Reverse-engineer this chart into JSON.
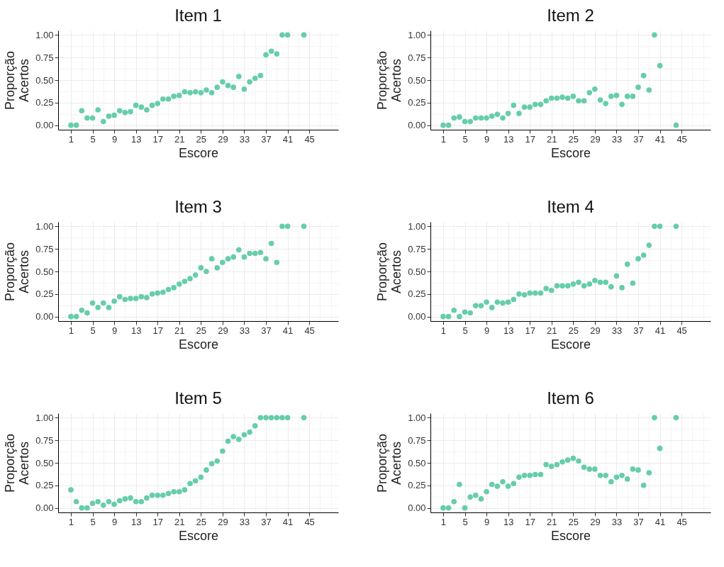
{
  "chart_data": [
    {
      "type": "scatter",
      "title": "Item 1",
      "xlabel": "Escore",
      "ylabel": "Proporção\nAcertos",
      "color": "#66cdaa",
      "marker": "circle",
      "grid": true,
      "x": [
        1,
        2,
        3,
        4,
        5,
        6,
        7,
        8,
        9,
        10,
        11,
        12,
        13,
        14,
        15,
        16,
        17,
        18,
        19,
        20,
        21,
        22,
        23,
        24,
        25,
        26,
        27,
        28,
        29,
        30,
        31,
        32,
        33,
        34,
        35,
        36,
        37,
        38,
        39,
        40,
        41,
        44
      ],
      "values": [
        0,
        0,
        0.16,
        0.08,
        0.08,
        0.17,
        0.04,
        0.1,
        0.11,
        0.16,
        0.14,
        0.15,
        0.22,
        0.2,
        0.17,
        0.22,
        0.24,
        0.29,
        0.29,
        0.32,
        0.33,
        0.37,
        0.36,
        0.37,
        0.36,
        0.39,
        0.36,
        0.42,
        0.48,
        0.44,
        0.42,
        0.54,
        0.4,
        0.48,
        0.52,
        0.55,
        0.78,
        0.82,
        0.79,
        1,
        1,
        1
      ],
      "xlim": [
        -1.35,
        50.35
      ],
      "xticks": [
        1,
        5,
        9,
        13,
        17,
        21,
        25,
        29,
        33,
        37,
        41,
        45
      ],
      "ylim": [
        -0.05,
        1.05
      ],
      "yticks": [
        {
          "value": 0,
          "label": "0.00"
        },
        {
          "value": 0.25,
          "label": "0.25"
        },
        {
          "value": 0.5,
          "label": "0.50"
        },
        {
          "value": 0.75,
          "label": "0.75"
        },
        {
          "value": 1,
          "label": "1.00"
        }
      ]
    },
    {
      "type": "scatter",
      "title": "Item 2",
      "xlabel": "Escore",
      "ylabel": "Proporção\nAcertos",
      "color": "#66cdaa",
      "marker": "circle",
      "grid": true,
      "x": [
        1,
        2,
        3,
        4,
        5,
        6,
        7,
        8,
        9,
        10,
        11,
        12,
        13,
        14,
        15,
        16,
        17,
        18,
        19,
        20,
        21,
        22,
        23,
        24,
        25,
        26,
        27,
        28,
        29,
        30,
        31,
        32,
        33,
        34,
        35,
        36,
        37,
        38,
        39,
        40,
        41,
        44
      ],
      "values": [
        0,
        0,
        0.08,
        0.09,
        0.04,
        0.04,
        0.08,
        0.08,
        0.08,
        0.1,
        0.12,
        0.08,
        0.13,
        0.22,
        0.13,
        0.2,
        0.2,
        0.23,
        0.23,
        0.27,
        0.3,
        0.3,
        0.31,
        0.3,
        0.32,
        0.27,
        0.27,
        0.36,
        0.4,
        0.28,
        0.24,
        0.32,
        0.33,
        0.23,
        0.32,
        0.32,
        0.42,
        0.55,
        0.39,
        1,
        0.66,
        0
      ],
      "xlim": [
        -1.35,
        50.35
      ],
      "xticks": [
        1,
        5,
        9,
        13,
        17,
        21,
        25,
        29,
        33,
        37,
        41,
        45
      ],
      "ylim": [
        -0.05,
        1.05
      ],
      "yticks": [
        {
          "value": 0,
          "label": "0.00"
        },
        {
          "value": 0.25,
          "label": "0.25"
        },
        {
          "value": 0.5,
          "label": "0.50"
        },
        {
          "value": 0.75,
          "label": "0.75"
        },
        {
          "value": 1,
          "label": "1.00"
        }
      ]
    },
    {
      "type": "scatter",
      "title": "Item 3",
      "xlabel": "Escore",
      "ylabel": "Proporção\nAcertos",
      "color": "#66cdaa",
      "marker": "circle",
      "grid": true,
      "x": [
        1,
        2,
        3,
        4,
        5,
        6,
        7,
        8,
        9,
        10,
        11,
        12,
        13,
        14,
        15,
        16,
        17,
        18,
        19,
        20,
        21,
        22,
        23,
        24,
        25,
        26,
        27,
        28,
        29,
        30,
        31,
        32,
        33,
        34,
        35,
        36,
        37,
        38,
        39,
        40,
        41,
        44
      ],
      "values": [
        0,
        0,
        0.07,
        0.04,
        0.15,
        0.1,
        0.15,
        0.1,
        0.17,
        0.22,
        0.19,
        0.2,
        0.2,
        0.22,
        0.21,
        0.25,
        0.26,
        0.27,
        0.3,
        0.32,
        0.36,
        0.39,
        0.42,
        0.46,
        0.54,
        0.5,
        0.64,
        0.54,
        0.6,
        0.64,
        0.66,
        0.74,
        0.66,
        0.7,
        0.7,
        0.71,
        0.64,
        0.81,
        0.6,
        1,
        1,
        1
      ],
      "xlim": [
        -1.35,
        50.35
      ],
      "xticks": [
        1,
        5,
        9,
        13,
        17,
        21,
        25,
        29,
        33,
        37,
        41,
        45
      ],
      "ylim": [
        -0.05,
        1.05
      ],
      "yticks": [
        {
          "value": 0,
          "label": "0.00"
        },
        {
          "value": 0.25,
          "label": "0.25"
        },
        {
          "value": 0.5,
          "label": "0.50"
        },
        {
          "value": 0.75,
          "label": "0.75"
        },
        {
          "value": 1,
          "label": "1.00"
        }
      ]
    },
    {
      "type": "scatter",
      "title": "Item 4",
      "xlabel": "Escore",
      "ylabel": "Proporção\nAcertos",
      "color": "#66cdaa",
      "marker": "circle",
      "grid": true,
      "x": [
        1,
        2,
        3,
        4,
        5,
        6,
        7,
        8,
        9,
        10,
        11,
        12,
        13,
        14,
        15,
        16,
        17,
        18,
        19,
        20,
        21,
        22,
        23,
        24,
        25,
        26,
        27,
        28,
        29,
        30,
        31,
        32,
        33,
        34,
        35,
        36,
        37,
        38,
        39,
        40,
        41,
        44
      ],
      "values": [
        0,
        0,
        0.07,
        0,
        0.05,
        0.04,
        0.12,
        0.12,
        0.16,
        0.1,
        0.16,
        0.15,
        0.16,
        0.19,
        0.25,
        0.24,
        0.26,
        0.26,
        0.26,
        0.31,
        0.29,
        0.34,
        0.34,
        0.34,
        0.36,
        0.38,
        0.34,
        0.36,
        0.4,
        0.38,
        0.38,
        0.33,
        0.45,
        0.32,
        0.58,
        0.37,
        0.64,
        0.68,
        0.79,
        1,
        1,
        1
      ],
      "xlim": [
        -1.35,
        50.35
      ],
      "xticks": [
        1,
        5,
        9,
        13,
        17,
        21,
        25,
        29,
        33,
        37,
        41,
        45
      ],
      "ylim": [
        -0.05,
        1.05
      ],
      "yticks": [
        {
          "value": 0,
          "label": "0.00"
        },
        {
          "value": 0.25,
          "label": "0.25"
        },
        {
          "value": 0.5,
          "label": "0.50"
        },
        {
          "value": 0.75,
          "label": "0.75"
        },
        {
          "value": 1,
          "label": "1.00"
        }
      ]
    },
    {
      "type": "scatter",
      "title": "Item 5",
      "xlabel": "Escore",
      "ylabel": "Proporção\nAcertos",
      "color": "#66cdaa",
      "marker": "circle",
      "grid": true,
      "x": [
        1,
        2,
        3,
        4,
        5,
        6,
        7,
        8,
        9,
        10,
        11,
        12,
        13,
        14,
        15,
        16,
        17,
        18,
        19,
        20,
        21,
        22,
        23,
        24,
        25,
        26,
        27,
        28,
        29,
        30,
        31,
        32,
        33,
        34,
        35,
        36,
        37,
        38,
        39,
        40,
        41,
        44
      ],
      "values": [
        0.2,
        0.07,
        0,
        0,
        0.05,
        0.07,
        0.03,
        0.07,
        0.04,
        0.08,
        0.1,
        0.11,
        0.07,
        0.07,
        0.11,
        0.14,
        0.14,
        0.14,
        0.16,
        0.18,
        0.18,
        0.2,
        0.27,
        0.3,
        0.34,
        0.42,
        0.49,
        0.52,
        0.63,
        0.74,
        0.79,
        0.76,
        0.81,
        0.84,
        0.91,
        1,
        1,
        1,
        1,
        1,
        1,
        1
      ],
      "xlim": [
        -1.35,
        50.35
      ],
      "xticks": [
        1,
        5,
        9,
        13,
        17,
        21,
        25,
        29,
        33,
        37,
        41,
        45
      ],
      "ylim": [
        -0.05,
        1.05
      ],
      "yticks": [
        {
          "value": 0,
          "label": "0.00"
        },
        {
          "value": 0.25,
          "label": "0.25"
        },
        {
          "value": 0.5,
          "label": "0.50"
        },
        {
          "value": 0.75,
          "label": "0.75"
        },
        {
          "value": 1,
          "label": "1.00"
        }
      ]
    },
    {
      "type": "scatter",
      "title": "Item 6",
      "xlabel": "Escore",
      "ylabel": "Proporção\nAcertos",
      "color": "#66cdaa",
      "marker": "circle",
      "grid": true,
      "x": [
        1,
        2,
        3,
        4,
        5,
        6,
        7,
        8,
        9,
        10,
        11,
        12,
        13,
        14,
        15,
        16,
        17,
        18,
        19,
        20,
        21,
        22,
        23,
        24,
        25,
        26,
        27,
        28,
        29,
        30,
        31,
        32,
        33,
        34,
        35,
        36,
        37,
        38,
        39,
        40,
        41,
        44
      ],
      "values": [
        0,
        0,
        0.07,
        0.26,
        0,
        0.12,
        0.14,
        0.1,
        0.18,
        0.26,
        0.24,
        0.29,
        0.24,
        0.27,
        0.34,
        0.36,
        0.36,
        0.37,
        0.37,
        0.48,
        0.46,
        0.48,
        0.51,
        0.53,
        0.55,
        0.52,
        0.45,
        0.43,
        0.43,
        0.36,
        0.36,
        0.29,
        0.34,
        0.36,
        0.32,
        0.43,
        0.42,
        0.25,
        0.39,
        1,
        0.66,
        1
      ],
      "xlim": [
        -1.35,
        50.35
      ],
      "xticks": [
        1,
        5,
        9,
        13,
        17,
        21,
        25,
        29,
        33,
        37,
        41,
        45
      ],
      "ylim": [
        -0.05,
        1.05
      ],
      "yticks": [
        {
          "value": 0,
          "label": "0.00"
        },
        {
          "value": 0.25,
          "label": "0.25"
        },
        {
          "value": 0.5,
          "label": "0.50"
        },
        {
          "value": 0.75,
          "label": "0.75"
        },
        {
          "value": 1,
          "label": "1.00"
        }
      ]
    }
  ]
}
